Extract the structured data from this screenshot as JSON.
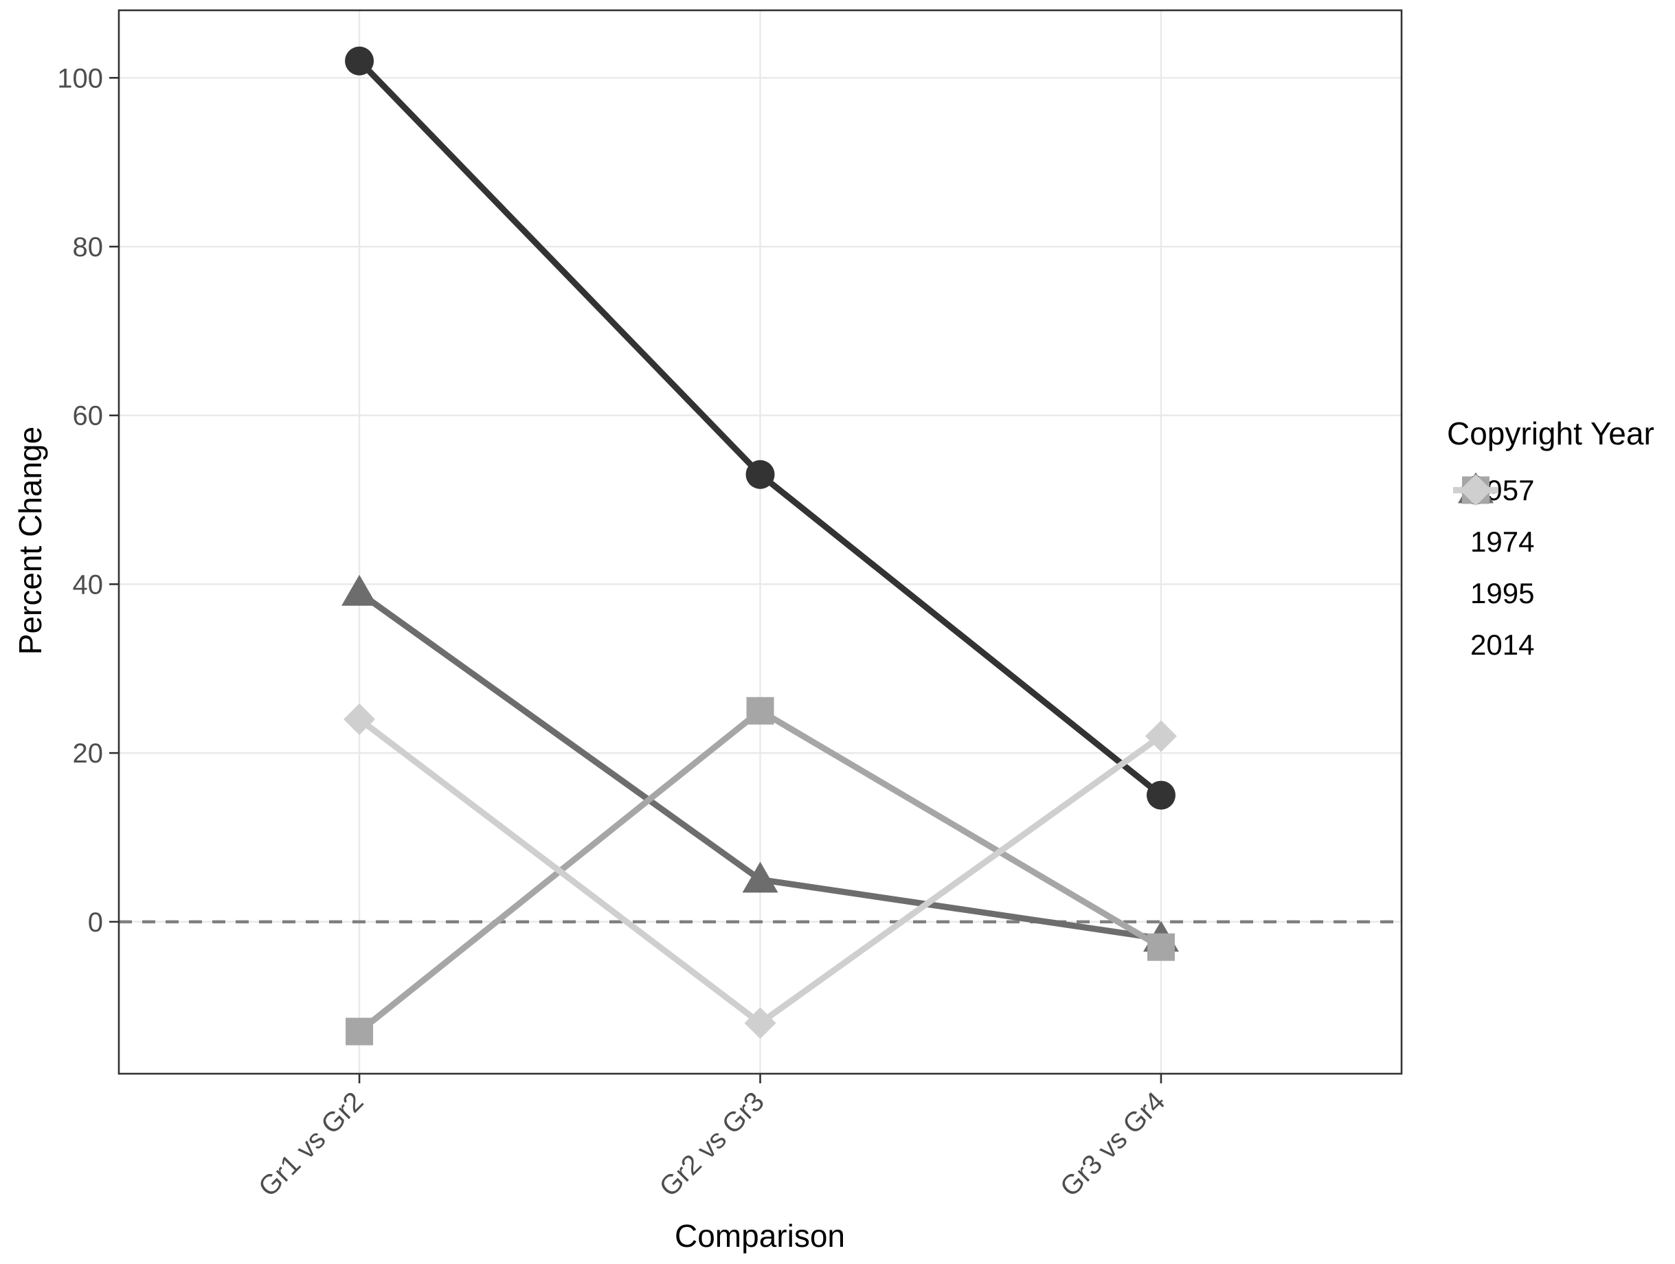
{
  "theme": {
    "background": "#ffffff",
    "panel_border": "#333333",
    "grid_line": "#e9e9e9",
    "tick_color": "#333333",
    "tick_label_color": "#4d4d4d",
    "text_color": "#000000",
    "reference_line_color": "#7f7f7f"
  },
  "chart_data": {
    "type": "line",
    "categories": [
      "Gr1 vs Gr2",
      "Gr2 vs Gr3",
      "Gr3 vs Gr4"
    ],
    "series": [
      {
        "name": "1957",
        "marker": "circle",
        "color": "#333333",
        "values": [
          102,
          53,
          15
        ]
      },
      {
        "name": "1974",
        "marker": "triangle",
        "color": "#6d6d6d",
        "values": [
          39,
          5,
          -2
        ]
      },
      {
        "name": "1995",
        "marker": "square",
        "color": "#a6a6a6",
        "values": [
          -13,
          25,
          -3
        ]
      },
      {
        "name": "2014",
        "marker": "diamond",
        "color": "#cfcfcf",
        "values": [
          24,
          -12,
          22
        ]
      }
    ],
    "xlabel": "Comparison",
    "ylabel": "Percent Change",
    "yticks": [
      0,
      20,
      40,
      60,
      80,
      100
    ],
    "ylim": [
      -18,
      108
    ],
    "grid": true,
    "legend": {
      "title": "Copyright Year",
      "position": "right"
    },
    "reference_line": {
      "y": 0,
      "style": "dashed"
    }
  }
}
